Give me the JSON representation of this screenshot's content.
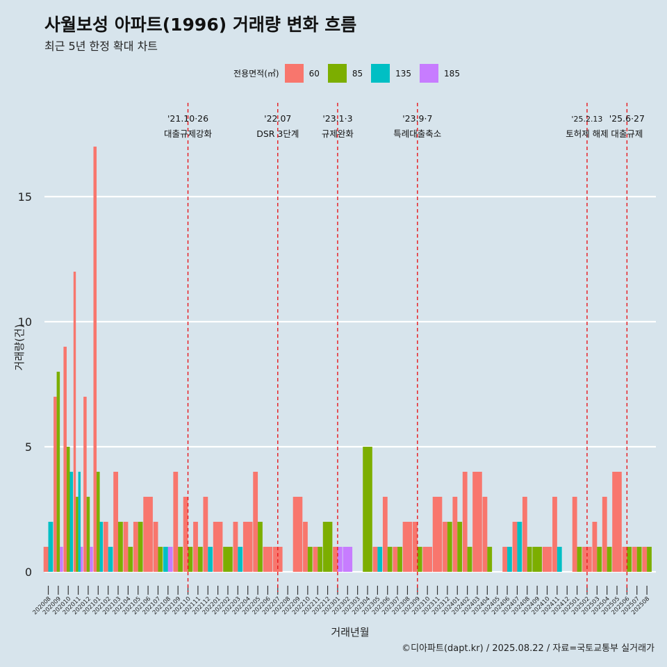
{
  "title": "사월보성 아파트(1996) 거래량 변화 흐름",
  "subtitle": "최근 5년 한정 확대 차트",
  "caption": "©디아파트(dapt.kr) / 2025.08.22 / 자료=국토교통부 실거래가",
  "legend": {
    "title": "전용면적(㎡)",
    "items": [
      {
        "label": "60",
        "color": "#F8766D"
      },
      {
        "label": "85",
        "color": "#7CAE00"
      },
      {
        "label": "135",
        "color": "#00BFC4"
      },
      {
        "label": "185",
        "color": "#C77CFF"
      }
    ]
  },
  "chart_data": {
    "type": "bar",
    "xlabel": "거래년월",
    "ylabel": "거래량(건)",
    "ylim": [
      0,
      18
    ],
    "yticks": [
      0,
      5,
      10,
      15
    ],
    "grid": true,
    "series_names": [
      "60",
      "85",
      "135",
      "185"
    ],
    "months": [
      "202008",
      "202009",
      "202010",
      "202011",
      "202012",
      "202101",
      "202102",
      "202103",
      "202104",
      "202105",
      "202106",
      "202107",
      "202108",
      "202109",
      "202110",
      "202111",
      "202112",
      "202201",
      "202202",
      "202203",
      "202204",
      "202205",
      "202206",
      "202207",
      "202208",
      "202209",
      "202210",
      "202211",
      "202212",
      "202301",
      "202302",
      "202303",
      "202304",
      "202305",
      "202306",
      "202307",
      "202308",
      "202309",
      "202310",
      "202311",
      "202312",
      "202401",
      "202402",
      "202403",
      "202404",
      "202405",
      "202406",
      "202407",
      "202408",
      "202409",
      "202410",
      "202411",
      "202412",
      "202501",
      "202502",
      "202503",
      "202504",
      "202505",
      "202506",
      "202507",
      "202508"
    ],
    "tick_labels": [
      "202008",
      "202009",
      "202010",
      "202011",
      "202012",
      "202101",
      "202102",
      "202103",
      "202104",
      "202105",
      "202106",
      "202107",
      "202108",
      "202109",
      "202110",
      "202111",
      "202112",
      "202201",
      "202202",
      "202203",
      "202204",
      "202205",
      "202206",
      "202207",
      "202208",
      "202209",
      "202210",
      "202211",
      "202212",
      "202301",
      "202302",
      "202303",
      "202304",
      "202305",
      "202306",
      "202307",
      "202308",
      "202309",
      "202310",
      "202311",
      "202312",
      "202401",
      "202402",
      "202403",
      "202404",
      "202405",
      "202406",
      "202407",
      "202408",
      "202409",
      "202410",
      "202411",
      "202412",
      "202501",
      "202502",
      "202503",
      "202504",
      "202505",
      "202506",
      "202507",
      "202508"
    ],
    "values": [
      [
        1,
        0,
        2,
        0
      ],
      [
        7,
        8,
        0,
        1
      ],
      [
        9,
        5,
        4,
        0
      ],
      [
        12,
        3,
        4,
        1
      ],
      [
        7,
        3,
        0,
        1
      ],
      [
        17,
        4,
        2,
        0
      ],
      [
        2,
        0,
        1,
        0
      ],
      [
        4,
        2,
        0,
        0
      ],
      [
        2,
        1,
        0,
        0
      ],
      [
        2,
        2,
        0,
        0
      ],
      [
        3,
        0,
        0,
        0
      ],
      [
        2,
        1,
        0,
        0
      ],
      [
        0,
        0,
        1,
        1
      ],
      [
        4,
        1,
        0,
        0
      ],
      [
        3,
        1,
        0,
        0
      ],
      [
        2,
        1,
        0,
        0
      ],
      [
        3,
        0,
        1,
        0
      ],
      [
        2,
        0,
        0,
        0
      ],
      [
        0,
        1,
        0,
        0
      ],
      [
        2,
        0,
        1,
        0
      ],
      [
        2,
        0,
        0,
        0
      ],
      [
        4,
        2,
        0,
        0
      ],
      [
        1,
        0,
        0,
        0
      ],
      [
        1,
        0,
        0,
        0
      ],
      [
        0,
        0,
        0,
        0
      ],
      [
        3,
        0,
        0,
        0
      ],
      [
        2,
        1,
        0,
        0
      ],
      [
        1,
        1,
        0,
        0
      ],
      [
        0,
        2,
        0,
        0
      ],
      [
        1,
        0,
        0,
        1
      ],
      [
        0,
        0,
        0,
        1
      ],
      [
        0,
        0,
        0,
        0
      ],
      [
        0,
        5,
        0,
        0
      ],
      [
        1,
        0,
        1,
        0
      ],
      [
        3,
        1,
        0,
        0
      ],
      [
        1,
        1,
        0,
        0
      ],
      [
        2,
        0,
        0,
        0
      ],
      [
        2,
        1,
        0,
        0
      ],
      [
        1,
        0,
        0,
        0
      ],
      [
        3,
        0,
        0,
        0
      ],
      [
        2,
        2,
        0,
        0
      ],
      [
        3,
        2,
        0,
        0
      ],
      [
        4,
        1,
        0,
        0
      ],
      [
        4,
        0,
        0,
        0
      ],
      [
        3,
        1,
        0,
        0
      ],
      [
        0,
        0,
        0,
        0
      ],
      [
        1,
        0,
        1,
        0
      ],
      [
        2,
        0,
        2,
        0
      ],
      [
        3,
        1,
        0,
        0
      ],
      [
        0,
        1,
        0,
        0
      ],
      [
        1,
        0,
        0,
        0
      ],
      [
        3,
        0,
        1,
        0
      ],
      [
        0,
        0,
        0,
        0
      ],
      [
        3,
        1,
        0,
        0
      ],
      [
        1,
        0,
        0,
        0
      ],
      [
        2,
        1,
        0,
        0
      ],
      [
        3,
        1,
        0,
        0
      ],
      [
        4,
        0,
        0,
        0
      ],
      [
        1,
        1,
        0,
        0
      ],
      [
        1,
        1,
        0,
        0
      ],
      [
        1,
        1,
        0,
        0
      ]
    ],
    "events": [
      {
        "month": "202110",
        "date": "'21.10·26",
        "label": "대출규제강화"
      },
      {
        "month": "202207",
        "date": "'22.07",
        "label": "DSR 3단계"
      },
      {
        "month": "202301",
        "date": "'23.1·3",
        "label": "규제완화"
      },
      {
        "month": "202309",
        "date": "'23.9·7",
        "label": "특례대출축소"
      },
      {
        "month": "202502",
        "date": "'25.2.13",
        "label": "토허제 해제"
      },
      {
        "month": "202506",
        "date": "'25.6·27",
        "label": "대출규제"
      }
    ]
  }
}
